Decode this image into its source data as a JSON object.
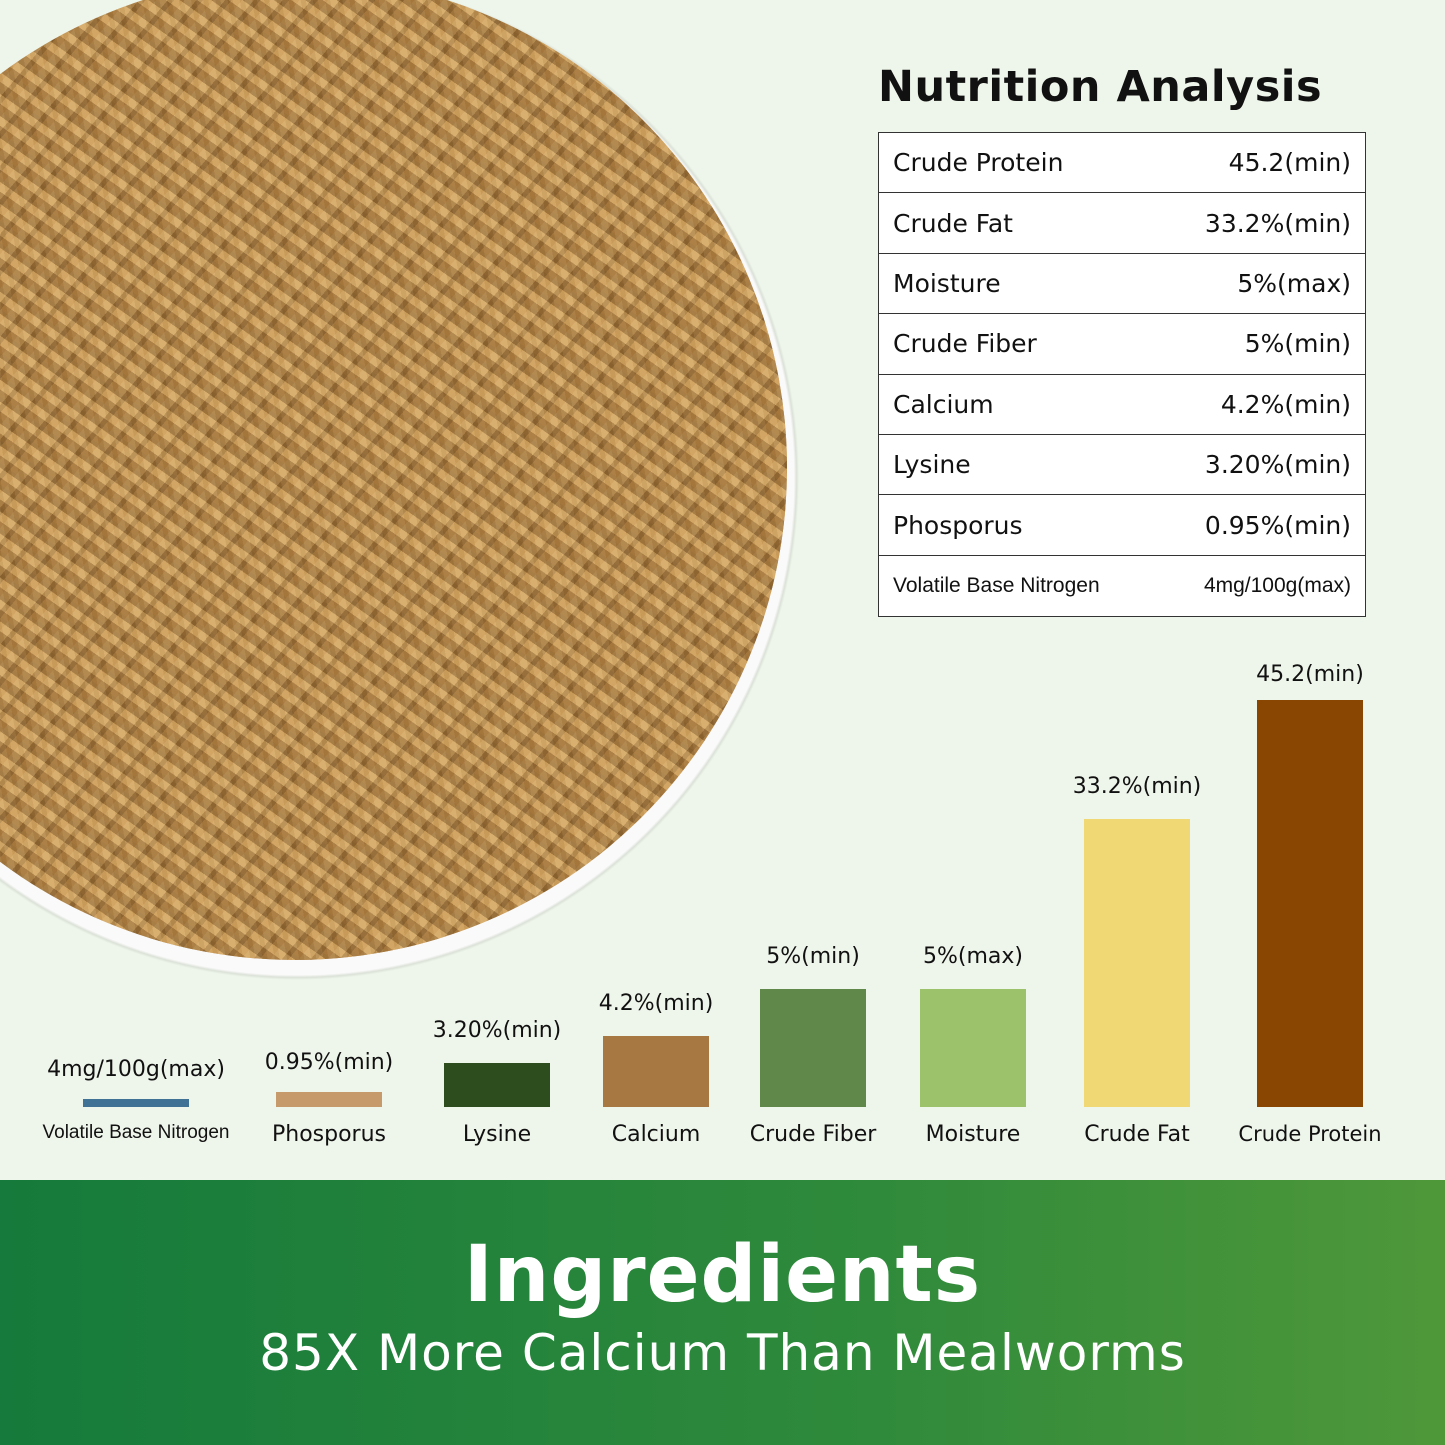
{
  "title": "Nutrition Analysis",
  "table": [
    {
      "name": "Crude Protein",
      "value": "45.2(min)"
    },
    {
      "name": "Crude Fat",
      "value": "33.2%(min)"
    },
    {
      "name": "Moisture",
      "value": "5%(max)"
    },
    {
      "name": "Crude Fiber",
      "value": "5%(min)"
    },
    {
      "name": "Calcium",
      "value": "4.2%(min)"
    },
    {
      "name": "Lysine",
      "value": "3.20%(min)"
    },
    {
      "name": "Phosporus",
      "value": "0.95%(min)"
    },
    {
      "name": "Volatile Base Nitrogen",
      "value": "4mg/100g(max)"
    }
  ],
  "chart_data": {
    "type": "bar",
    "categories": [
      "Volatile Base Nitrogen",
      "Phosporus",
      "Lysine",
      "Calcium",
      "Crude Fiber",
      "Moisture",
      "Crude Fat",
      "Crude Protein"
    ],
    "values": [
      0.004,
      0.95,
      3.2,
      4.2,
      5,
      5,
      33.2,
      45.2
    ],
    "data_labels": [
      "4mg/100g(max)",
      "0.95%(min)",
      "3.20%(min)",
      "4.2%(min)",
      "5%(min)",
      "5%(max)",
      "33.2%(min)",
      "45.2(min)"
    ],
    "colors": [
      "#3f7295",
      "#c79a6b",
      "#2e4d1e",
      "#a87843",
      "#60884a",
      "#9cc26c",
      "#f0d975",
      "#884602"
    ],
    "grid": false
  },
  "banner": {
    "heading": "Ingredients",
    "subheading": "85X More Calcium Than Mealworms"
  }
}
